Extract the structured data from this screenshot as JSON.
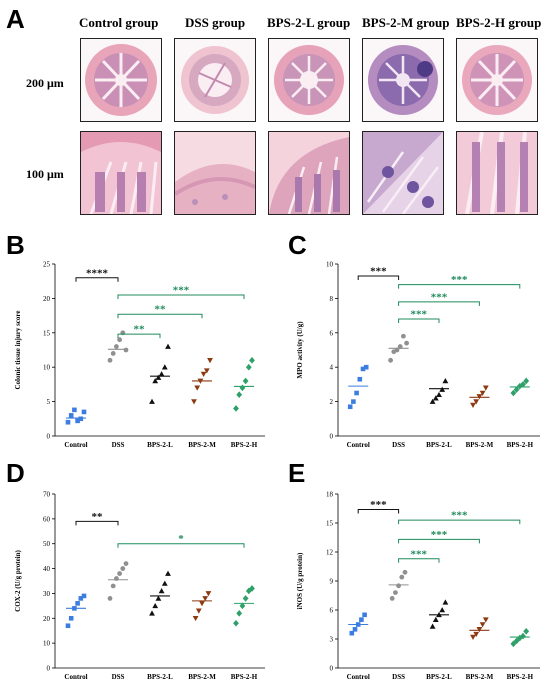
{
  "panels": {
    "A": {
      "letter": "A"
    },
    "B": {
      "letter": "B"
    },
    "C": {
      "letter": "C"
    },
    "D": {
      "letter": "D"
    },
    "E": {
      "letter": "E"
    }
  },
  "histology": {
    "headers": [
      "Control group",
      "DSS group",
      "BPS-2-L group",
      "BPS-2-M group",
      "BPS-2-H group"
    ],
    "scales": [
      "200 μm",
      "100 μm"
    ]
  },
  "colors": {
    "Control": "#3b7de0",
    "DSS": "#909090",
    "BPS-2-L": "#111111",
    "BPS-2-M": "#8c3a12",
    "BPS-2-H": "#2fa06a",
    "sig_DSS_vs_Control": "#111111",
    "sig_treat_vs_DSS": "#1f8a5b",
    "hist_pink": "#e9a0b6",
    "hist_purple": "#7a5ba8"
  },
  "chart_data": [
    {
      "id": "B",
      "type": "scatter",
      "ylabel": "Colonic tissue injury score",
      "ylim": [
        0,
        25
      ],
      "yticks": [
        0,
        5,
        10,
        15,
        20,
        25
      ],
      "categories": [
        "Control",
        "DSS",
        "BPS-2-L",
        "BPS-2-M",
        "BPS-2-H"
      ],
      "markers": [
        "square",
        "circle",
        "triangle-up",
        "triangle-down",
        "diamond"
      ],
      "points": [
        [
          2,
          3,
          3.8,
          2.2,
          2.5,
          3.5
        ],
        [
          11,
          12,
          13,
          14,
          15,
          12.5
        ],
        [
          5,
          8,
          8.5,
          9,
          10,
          13
        ],
        [
          5,
          7,
          8,
          9,
          9.5,
          11
        ],
        [
          4,
          6,
          7,
          8,
          10,
          11
        ]
      ],
      "means": [
        2.6,
        12.6,
        8.7,
        8,
        7.2
      ],
      "significance": [
        {
          "label": "****",
          "from": 0,
          "to": 1,
          "y": 23
        },
        {
          "label": "***",
          "from": 1,
          "to": 4,
          "y": 20.5
        },
        {
          "label": "**",
          "from": 1,
          "to": 3,
          "y": 17.7
        },
        {
          "label": "**",
          "from": 1,
          "to": 2,
          "y": 14.8
        }
      ]
    },
    {
      "id": "C",
      "type": "scatter",
      "ylabel": "MPO activity (U/g)",
      "ylim": [
        0,
        10
      ],
      "yticks": [
        0,
        2,
        4,
        6,
        8,
        10
      ],
      "categories": [
        "Control",
        "DSS",
        "BPS-2-L",
        "BPS-2-M",
        "BPS-2-H"
      ],
      "markers": [
        "square",
        "circle",
        "triangle-up",
        "triangle-down",
        "diamond"
      ],
      "points": [
        [
          1.7,
          2,
          2.5,
          3.3,
          3.9,
          4
        ],
        [
          4.4,
          4.9,
          5,
          5.2,
          5.8,
          5.4
        ],
        [
          2,
          2.2,
          2.4,
          2.7,
          3.2
        ],
        [
          1.8,
          2,
          2.3,
          2.5,
          2.8
        ],
        [
          2.5,
          2.7,
          2.9,
          3,
          3.2
        ]
      ],
      "means": [
        2.9,
        5.1,
        2.75,
        2.25,
        2.85
      ],
      "significance": [
        {
          "label": "***",
          "from": 0,
          "to": 1,
          "y": 9.3
        },
        {
          "label": "***",
          "from": 1,
          "to": 4,
          "y": 8.8
        },
        {
          "label": "***",
          "from": 1,
          "to": 3,
          "y": 7.8
        },
        {
          "label": "***",
          "from": 1,
          "to": 2,
          "y": 6.8
        }
      ]
    },
    {
      "id": "D",
      "type": "scatter",
      "ylabel": "COX-2 (U/g protein)",
      "ylim": [
        0,
        70
      ],
      "yticks": [
        0,
        10,
        20,
        30,
        40,
        50,
        60,
        70
      ],
      "categories": [
        "Control",
        "DSS",
        "BPS-2-L",
        "BPS-2-M",
        "BPS-2-H"
      ],
      "markers": [
        "square",
        "circle",
        "triangle-up",
        "triangle-down",
        "diamond"
      ],
      "points": [
        [
          17,
          20,
          24,
          26,
          28,
          29
        ],
        [
          28,
          33,
          36,
          38,
          40,
          42
        ],
        [
          22,
          25,
          28,
          31,
          34,
          38
        ],
        [
          20,
          23,
          26,
          28,
          30
        ],
        [
          18,
          22,
          25,
          28,
          31,
          32
        ]
      ],
      "means": [
        24,
        35.5,
        29,
        27,
        26
      ],
      "significance": [
        {
          "label": "**",
          "from": 0,
          "to": 1,
          "y": 59
        },
        {
          "label": "*",
          "from": 1,
          "to": 4,
          "y": 50
        }
      ]
    },
    {
      "id": "E",
      "type": "scatter",
      "ylabel": "iNOS (U/g protein)",
      "ylim": [
        0,
        18
      ],
      "yticks": [
        0,
        3,
        6,
        9,
        12,
        15,
        18
      ],
      "categories": [
        "Control",
        "DSS",
        "BPS-2-L",
        "BPS-2-M",
        "BPS-2-H"
      ],
      "markers": [
        "square",
        "circle",
        "triangle-up",
        "triangle-down",
        "diamond"
      ],
      "points": [
        [
          3.6,
          4,
          4.5,
          5,
          5.5
        ],
        [
          7.2,
          7.8,
          8.5,
          9.4,
          9.9
        ],
        [
          4.3,
          5,
          5.5,
          6,
          6.8
        ],
        [
          3.2,
          3.5,
          4,
          4.5,
          5
        ],
        [
          2.5,
          2.8,
          3.1,
          3.3,
          3.8
        ]
      ],
      "means": [
        4.5,
        8.6,
        5.5,
        3.9,
        3.2
      ],
      "significance": [
        {
          "label": "***",
          "from": 0,
          "to": 1,
          "y": 16.4
        },
        {
          "label": "***",
          "from": 1,
          "to": 4,
          "y": 15.3
        },
        {
          "label": "***",
          "from": 1,
          "to": 3,
          "y": 13.3
        },
        {
          "label": "***",
          "from": 1,
          "to": 2,
          "y": 11.3
        }
      ]
    }
  ]
}
